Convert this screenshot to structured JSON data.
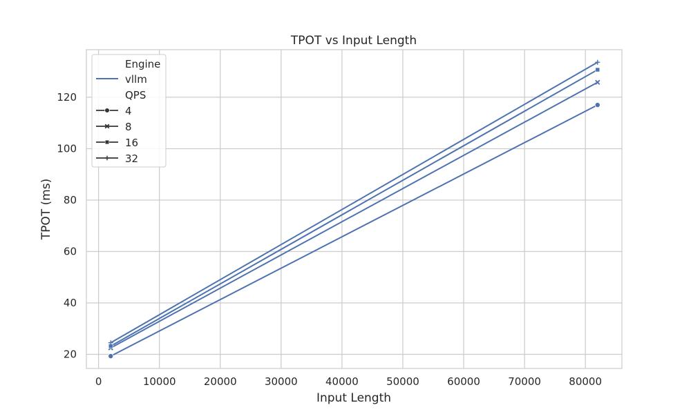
{
  "chart_data": {
    "type": "line",
    "title": "TPOT vs Input Length",
    "xlabel": "Input Length",
    "ylabel": "TPOT (ms)",
    "xlim": [
      -2000,
      86000
    ],
    "ylim": [
      14.5,
      138.5
    ],
    "xticks": [
      0,
      10000,
      20000,
      30000,
      40000,
      50000,
      60000,
      70000,
      80000
    ],
    "yticks": [
      20,
      40,
      60,
      80,
      100,
      120
    ],
    "grid": true,
    "legend_position": "top-left",
    "legend": {
      "engine_title": "Engine",
      "engine_items": [
        {
          "label": "vllm",
          "color": "#4c72b0"
        }
      ],
      "qps_title": "QPS",
      "qps_items": [
        {
          "label": "4",
          "marker": "circle"
        },
        {
          "label": "8",
          "marker": "x"
        },
        {
          "label": "16",
          "marker": "square"
        },
        {
          "label": "32",
          "marker": "plus"
        }
      ]
    },
    "series": [
      {
        "engine": "vllm",
        "qps": "4",
        "marker": "circle",
        "color": "#4c72b0",
        "x": [
          2000,
          82000
        ],
        "y": [
          19.3,
          117.0
        ]
      },
      {
        "engine": "vllm",
        "qps": "8",
        "marker": "x",
        "color": "#4c72b0",
        "x": [
          2000,
          82000
        ],
        "y": [
          22.5,
          125.8
        ]
      },
      {
        "engine": "vllm",
        "qps": "16",
        "marker": "square",
        "color": "#4c72b0",
        "x": [
          2000,
          82000
        ],
        "y": [
          23.2,
          130.7
        ]
      },
      {
        "engine": "vllm",
        "qps": "32",
        "marker": "plus",
        "color": "#4c72b0",
        "x": [
          2000,
          82000
        ],
        "y": [
          24.5,
          133.6
        ]
      }
    ]
  }
}
